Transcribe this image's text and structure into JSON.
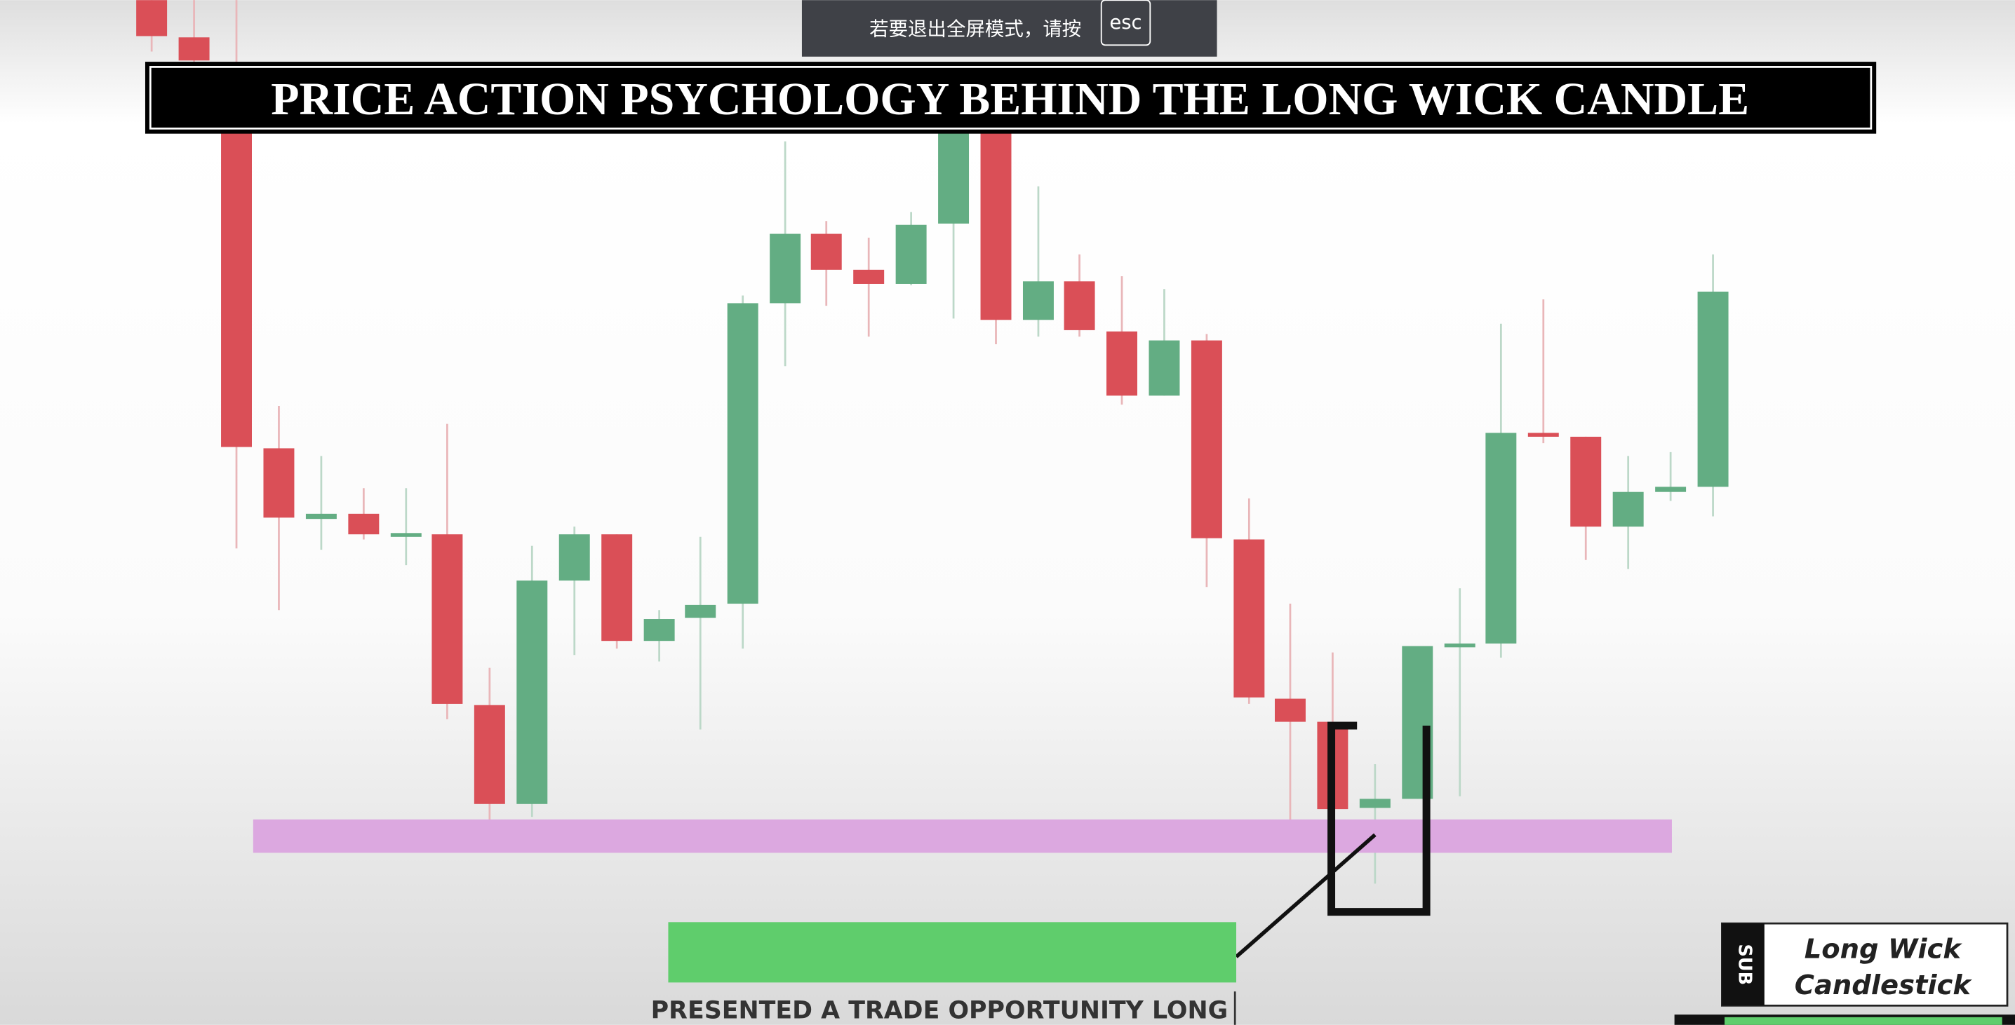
{
  "toast": {
    "message": "若要退出全屏模式，请按",
    "key": "esc"
  },
  "title": "PRICE ACTION PSYCHOLOGY BEHIND THE LONG WICK CANDLE",
  "caption": "PRESENTED A TRADE OPPORTUNITY LONG",
  "badge": {
    "logo": "SUB",
    "label_lines": [
      "Long Wick",
      "Candlestick"
    ]
  }
}
